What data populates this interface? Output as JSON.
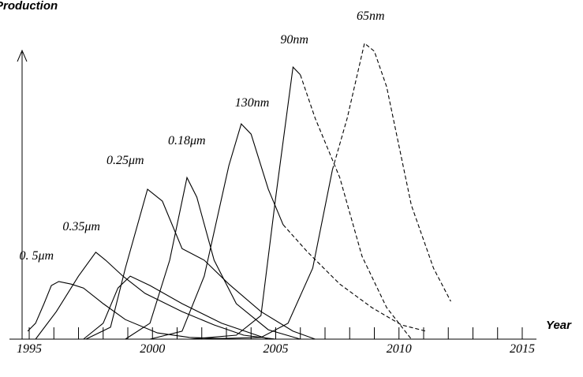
{
  "chart_data": {
    "type": "line",
    "ylabel": "Production",
    "xlabel": "Year",
    "xlim": [
      1994.5,
      2015.5
    ],
    "ylim": [
      0,
      110
    ],
    "xticks": [
      1995,
      2000,
      2005,
      2010,
      2015
    ],
    "xminorticks": [
      1996,
      1997,
      1998,
      1999,
      2001,
      2002,
      2003,
      2004,
      2006,
      2007,
      2008,
      2009,
      2011,
      2012,
      2013,
      2014
    ],
    "color": "#000000",
    "series": [
      {
        "name": "0. 5μm",
        "style": "solid",
        "x": [
          1994.94,
          1995.26,
          1995.6,
          1995.9,
          1996.2,
          1996.7,
          1997.2,
          1998.0,
          1998.9,
          2000.2,
          2001.5,
          2003.4
        ],
        "values": [
          2.8,
          5.6,
          12.5,
          18.9,
          20.3,
          19.4,
          18,
          12.5,
          6.9,
          2.2,
          0.6,
          0
        ]
      },
      {
        "name": "0.35μm",
        "style": "solid",
        "x": [
          1995.26,
          1996.1,
          1997.0,
          1997.7,
          1998.1,
          1998.8,
          1999.7,
          2001.2,
          2002.5,
          2003.7,
          2005.0
        ],
        "values": [
          0,
          9.7,
          22.2,
          30.6,
          27.8,
          22.2,
          16.1,
          9.7,
          5,
          1.4,
          0
        ]
      },
      {
        "style": "solid",
        "x": [
          1997.2,
          1998.0,
          1998.6,
          1999.1,
          1999.9,
          2001.2,
          2002.8,
          2004.7
        ],
        "values": [
          0,
          5.6,
          18,
          22.2,
          18.9,
          12.5,
          5.6,
          0
        ]
      },
      {
        "name": "0.25μm",
        "style": "solid",
        "x": [
          1997.3,
          1998.3,
          1998.9,
          1999.8,
          2000.4,
          2001.2,
          2002.1,
          2003.1,
          2004.4,
          2005.7,
          2006.6
        ],
        "values": [
          0,
          4.2,
          25,
          52.8,
          48.6,
          31.9,
          27.8,
          19.4,
          9.7,
          2.8,
          0
        ]
      },
      {
        "name": "0.18μm",
        "style": "solid",
        "x": [
          1998.9,
          1999.9,
          2000.7,
          2001.4,
          2001.8,
          2002.5,
          2003.4,
          2004.7,
          2006.0
        ],
        "values": [
          0,
          5.6,
          27.8,
          56.9,
          50,
          27.8,
          12.5,
          3.3,
          0
        ]
      },
      {
        "name": "130nm",
        "style": "solid",
        "x": [
          1999.9,
          2001.2,
          2002.1,
          2003.1,
          2003.6,
          2004.0,
          2004.7,
          2005.3
        ],
        "values": [
          0,
          2.8,
          22.2,
          61.1,
          75.8,
          72.2,
          52.8,
          40.3
        ]
      },
      {
        "style": "dashed",
        "x": [
          2005.3,
          2006.3,
          2007.6,
          2008.9,
          2010.1,
          2011.1
        ],
        "values": [
          40.3,
          30.6,
          19.4,
          11.1,
          5,
          2.8
        ]
      },
      {
        "name": "90nm",
        "style": "solid",
        "x": [
          2001.5,
          2003.4,
          2004.4,
          2005.0,
          2005.7,
          2006.0
        ],
        "values": [
          0,
          1.4,
          8.3,
          50,
          95.8,
          93.1
        ]
      },
      {
        "style": "dashed",
        "x": [
          2006.0,
          2006.6,
          2007.6,
          2008.5,
          2009.5,
          2010.5
        ],
        "values": [
          93.1,
          77.8,
          56.9,
          29.2,
          11.1,
          0
        ]
      },
      {
        "style": "solid",
        "x": [
          2001.8,
          2004.4,
          2005.5,
          2006.5,
          2007.3
        ],
        "values": [
          0,
          0.6,
          5.6,
          25,
          59.7
        ]
      },
      {
        "name": "65nm",
        "style": "dashed",
        "x": [
          2007.3,
          2007.9,
          2008.6,
          2009.0,
          2009.5,
          2010.5,
          2011.4,
          2012.1
        ],
        "values": [
          59.7,
          77.8,
          104.2,
          101.4,
          88.9,
          47.2,
          25,
          13.3
        ]
      }
    ]
  }
}
